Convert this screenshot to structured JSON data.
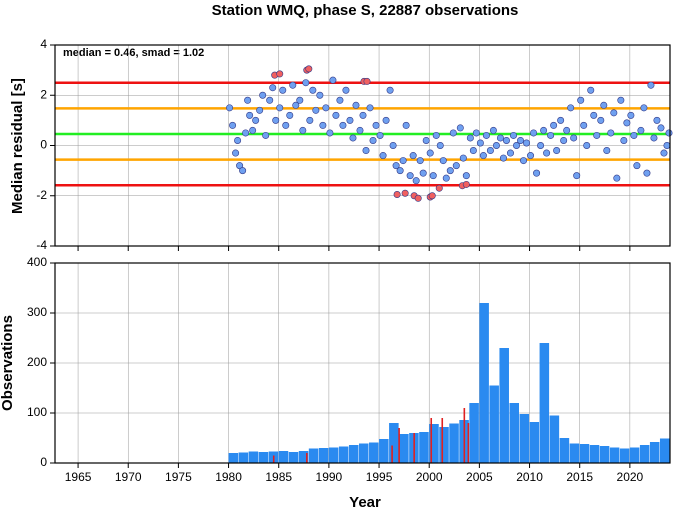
{
  "chart_data": [
    {
      "type": "scatter",
      "title": "Station WMQ, phase S, 22887 observations",
      "annotation": "median = 0.46, smad = 1.02",
      "ylabel": "Median residual [s]",
      "xlim": [
        1962.7,
        2024
      ],
      "ylim": [
        -4,
        4
      ],
      "yticks": [
        -4,
        -2,
        0,
        2,
        4
      ],
      "xticks": [
        1965,
        1970,
        1975,
        1980,
        1985,
        1990,
        1995,
        2000,
        2005,
        2010,
        2015,
        2020
      ],
      "grid": true,
      "hlines": [
        {
          "value": 2.5,
          "color": "#ee1111"
        },
        {
          "value": 1.48,
          "color": "#ffa500"
        },
        {
          "value": 0.46,
          "color": "#22ee22"
        },
        {
          "value": -0.56,
          "color": "#ffa500"
        },
        {
          "value": -1.58,
          "color": "#ee1111"
        }
      ],
      "series": [
        {
          "color": "#6fa0f0",
          "x": [
            1980.1,
            1980.4,
            1980.7,
            1980.9,
            1981.1,
            1981.4,
            1981.7,
            1981.9,
            1982.1,
            1982.4,
            1982.7,
            1983.1,
            1983.4,
            1983.7,
            1984.1,
            1984.4,
            1984.7,
            1985.1,
            1985.4,
            1985.7,
            1986.1,
            1986.4,
            1986.7,
            1987.1,
            1987.4,
            1987.7,
            1988.1,
            1988.4,
            1988.7,
            1989.1,
            1989.4,
            1989.7,
            1990.1,
            1990.4,
            1990.7,
            1991.1,
            1991.4,
            1991.7,
            1992.1,
            1992.4,
            1992.7,
            1993.1,
            1993.4,
            1993.7,
            1994.1,
            1994.4,
            1994.7,
            1995.1,
            1995.4,
            1995.7,
            1996.1,
            1996.4,
            1996.7,
            1997.1,
            1997.4,
            1997.7,
            1998.1,
            1998.4,
            1998.7,
            1999.1,
            1999.4,
            1999.7,
            2000.1,
            2000.4,
            2000.7,
            2001.1,
            2001.4,
            2001.7,
            2002.1,
            2002.4,
            2002.7,
            2003.1,
            2003.4,
            2003.7,
            2004.1,
            2004.4,
            2004.7,
            2005.1,
            2005.4,
            2005.7,
            2006.1,
            2006.4,
            2006.7,
            2007.1,
            2007.4,
            2007.7,
            2008.1,
            2008.4,
            2008.7,
            2009.1,
            2009.4,
            2009.7,
            2010.1,
            2010.4,
            2010.7,
            2011.1,
            2011.4,
            2011.7,
            2012.1,
            2012.4,
            2012.7,
            2013.1,
            2013.4,
            2013.7,
            2014.1,
            2014.4,
            2014.7,
            2015.1,
            2015.4,
            2015.7,
            2016.1,
            2016.4,
            2016.7,
            2017.1,
            2017.4,
            2017.7,
            2018.1,
            2018.4,
            2018.7,
            2019.1,
            2019.4,
            2019.7,
            2020.1,
            2020.4,
            2020.7,
            2021.1,
            2021.4,
            2021.7,
            2022.1,
            2022.4,
            2022.7,
            2023.1,
            2023.4,
            2023.7,
            2023.9
          ],
          "values": [
            1.5,
            0.8,
            -0.3,
            0.2,
            -0.8,
            -1.0,
            0.5,
            1.8,
            1.2,
            0.6,
            1.0,
            1.4,
            2.0,
            0.4,
            1.8,
            2.3,
            1.0,
            1.5,
            2.2,
            0.8,
            1.2,
            2.4,
            1.6,
            1.8,
            0.6,
            2.5,
            1.0,
            2.2,
            1.4,
            2.0,
            0.8,
            1.5,
            0.5,
            2.6,
            1.2,
            1.8,
            0.8,
            2.2,
            1.0,
            0.3,
            1.6,
            0.6,
            1.2,
            -0.2,
            1.5,
            0.2,
            0.8,
            0.4,
            -0.4,
            1.0,
            2.2,
            0.0,
            -0.8,
            -1.0,
            -0.6,
            0.8,
            -1.2,
            -0.4,
            -1.4,
            -0.6,
            -1.1,
            0.2,
            -0.3,
            -1.2,
            0.4,
            0.0,
            -0.6,
            -1.3,
            -1.0,
            0.5,
            -0.8,
            0.7,
            -0.5,
            -1.2,
            0.3,
            -0.2,
            0.5,
            0.1,
            -0.4,
            0.4,
            -0.2,
            0.6,
            0.0,
            0.3,
            -0.5,
            0.2,
            -0.3,
            0.4,
            0.0,
            0.2,
            -0.6,
            0.1,
            -0.4,
            0.5,
            -1.1,
            0.0,
            0.6,
            -0.3,
            0.4,
            0.8,
            -0.2,
            1.0,
            0.2,
            0.6,
            1.5,
            0.3,
            -1.2,
            1.8,
            0.8,
            0.0,
            2.2,
            1.2,
            0.4,
            1.0,
            1.6,
            -0.2,
            0.5,
            1.3,
            -1.3,
            1.8,
            0.2,
            0.9,
            1.2,
            0.4,
            -0.8,
            0.6,
            1.5,
            -1.1,
            2.4,
            0.3,
            1.0,
            0.7,
            -0.3,
            0.0,
            0.5
          ]
        },
        {
          "color": "#f06060",
          "x": [
            1984.6,
            1985.1,
            1987.8,
            1988.0,
            1993.5,
            1993.8,
            1996.8,
            1997.6,
            1998.5,
            1998.9,
            2000.1,
            2000.3,
            2001.0,
            2003.3,
            2003.7
          ],
          "values": [
            2.8,
            2.85,
            3.0,
            3.05,
            2.55,
            2.55,
            -1.95,
            -1.9,
            -2.0,
            -2.1,
            -2.05,
            -2.0,
            -1.7,
            -1.6,
            -1.55
          ]
        }
      ]
    },
    {
      "type": "histogram",
      "ylabel": "Observations",
      "xlabel": "Year",
      "xlim": [
        1962.7,
        2024
      ],
      "ylim": [
        0,
        400
      ],
      "yticks": [
        0,
        100,
        200,
        300,
        400
      ],
      "xticks": [
        1965,
        1970,
        1975,
        1980,
        1985,
        1990,
        1995,
        2000,
        2005,
        2010,
        2015,
        2020
      ],
      "grid": true,
      "color": "#2a8af0",
      "bins": [
        1980,
        1981,
        1982,
        1983,
        1984,
        1985,
        1986,
        1987,
        1988,
        1989,
        1990,
        1991,
        1992,
        1993,
        1994,
        1995,
        1996,
        1997,
        1998,
        1999,
        2000,
        2001,
        2002,
        2003,
        2004,
        2005,
        2006,
        2007,
        2008,
        2009,
        2010,
        2011,
        2012,
        2013,
        2014,
        2015,
        2016,
        2017,
        2018,
        2019,
        2020,
        2021,
        2022,
        2023,
        2024
      ],
      "values": [
        20,
        21,
        23,
        22,
        23,
        24,
        22,
        24,
        29,
        30,
        31,
        33,
        36,
        39,
        41,
        48,
        80,
        58,
        60,
        62,
        78,
        72,
        79,
        86,
        120,
        320,
        155,
        230,
        120,
        98,
        82,
        240,
        95,
        50,
        39,
        38,
        36,
        34,
        31,
        29,
        31,
        36,
        42,
        49
      ],
      "outliers": {
        "color": "#e02020",
        "x": [
          1984.5,
          1987.8,
          1996.3,
          1997.0,
          1998.5,
          2000.2,
          2001.3,
          2003.5,
          2003.9
        ],
        "values": [
          15,
          20,
          35,
          70,
          60,
          90,
          90,
          110,
          80
        ]
      }
    }
  ]
}
